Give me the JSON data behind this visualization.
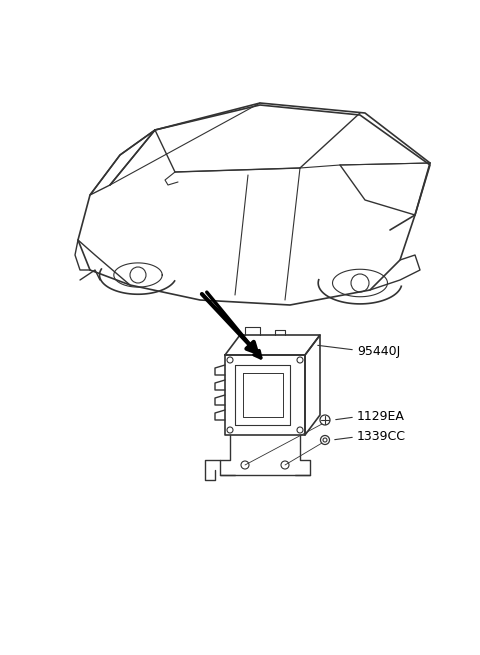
{
  "bg_color": "#ffffff",
  "line_color": "#333333",
  "arrow_color": "#000000",
  "label_color": "#000000",
  "figsize": [
    4.8,
    6.55
  ],
  "dpi": 100,
  "parts": [
    {
      "id": "95440J",
      "label": "95440J"
    },
    {
      "id": "1129EA",
      "label": "1129EA"
    },
    {
      "id": "1339CC",
      "label": "1339CC"
    }
  ],
  "title": ""
}
